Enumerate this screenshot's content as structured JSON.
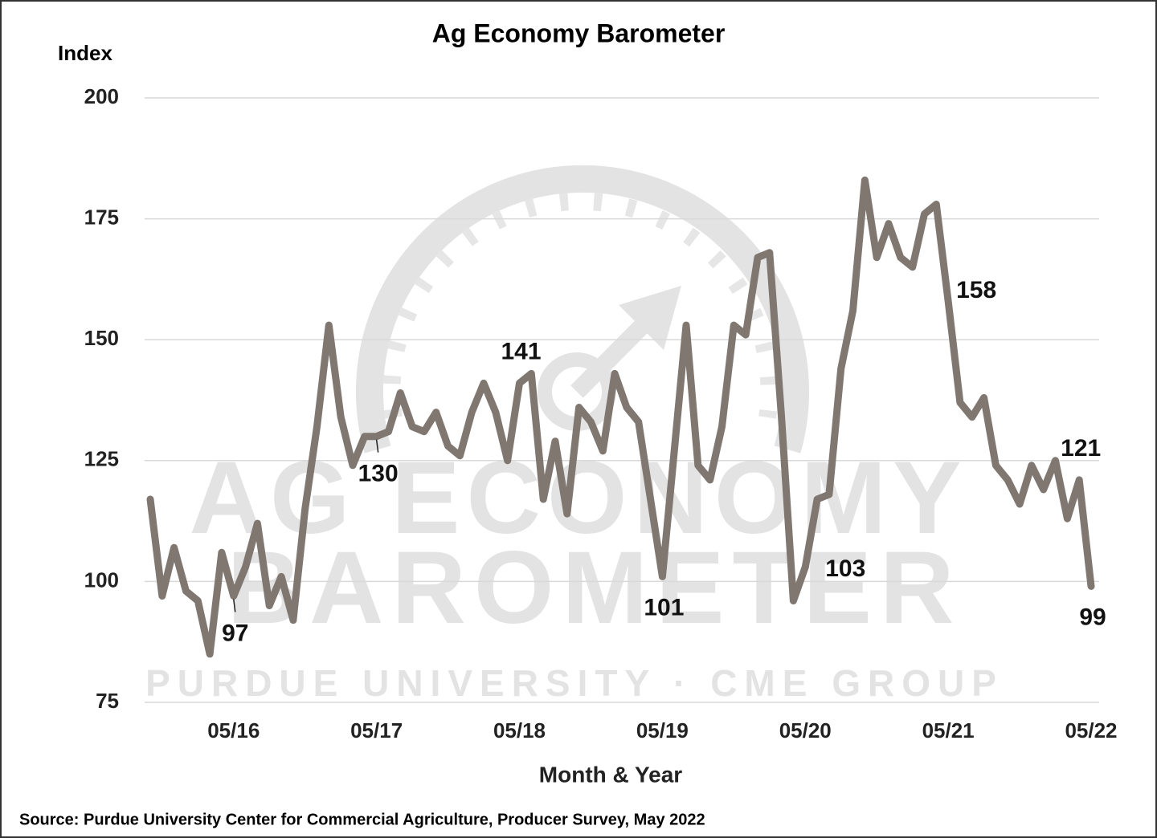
{
  "chart_data": {
    "type": "line",
    "title": "Ag Economy Barometer",
    "y_label": "Index",
    "x_label": "Month & Year",
    "source": "Source: Purdue University Center for Commercial Agriculture, Producer Survey, May 2022",
    "categories": [
      null,
      null,
      null,
      null,
      null,
      null,
      null,
      "05/16",
      null,
      null,
      null,
      null,
      null,
      null,
      null,
      null,
      null,
      null,
      null,
      "05/17",
      null,
      null,
      null,
      null,
      null,
      null,
      null,
      null,
      null,
      null,
      null,
      "05/18",
      null,
      null,
      null,
      null,
      null,
      null,
      null,
      null,
      null,
      null,
      null,
      "05/19",
      null,
      null,
      null,
      null,
      null,
      null,
      null,
      null,
      null,
      null,
      null,
      "05/20",
      null,
      null,
      null,
      null,
      null,
      null,
      null,
      null,
      null,
      null,
      null,
      "05/21",
      null,
      null,
      null,
      null,
      null,
      null,
      null,
      null,
      null,
      null,
      null,
      "05/22"
    ],
    "values": [
      117,
      97,
      107,
      98,
      96,
      85,
      106,
      97,
      103,
      112,
      95,
      101,
      92,
      115,
      132,
      153,
      134,
      124,
      130,
      130,
      131,
      139,
      132,
      131,
      135,
      128,
      126,
      135,
      141,
      135,
      125,
      141,
      143,
      117,
      129,
      114,
      136,
      133,
      127,
      143,
      136,
      133,
      117,
      101,
      127,
      153,
      124,
      121,
      132,
      153,
      151,
      167,
      168,
      134,
      96,
      103,
      117,
      118,
      144,
      156,
      183,
      167,
      174,
      167,
      165,
      176,
      178,
      158,
      137,
      134,
      138,
      124,
      121,
      116,
      124,
      119,
      125,
      113,
      121,
      99
    ],
    "value_labels": [
      null,
      null,
      null,
      null,
      null,
      null,
      null,
      97,
      null,
      null,
      null,
      null,
      null,
      null,
      null,
      null,
      null,
      null,
      null,
      130,
      null,
      null,
      null,
      null,
      null,
      null,
      null,
      null,
      null,
      null,
      null,
      141,
      null,
      null,
      null,
      null,
      null,
      null,
      null,
      null,
      null,
      null,
      null,
      101,
      null,
      null,
      null,
      null,
      null,
      null,
      null,
      null,
      null,
      null,
      null,
      103,
      null,
      null,
      null,
      null,
      null,
      null,
      null,
      null,
      null,
      null,
      null,
      158,
      null,
      null,
      null,
      null,
      null,
      null,
      null,
      null,
      null,
      null,
      121,
      99
    ],
    "color": "#7f7770",
    "ylim": [
      75,
      200
    ],
    "yticks": [
      75,
      100,
      125,
      150,
      175,
      200
    ],
    "grid": true
  },
  "watermark": {
    "lines": [
      "AG ECONOMY",
      "BAROMETER",
      "PURDUE UNIVERSITY · CME GROUP"
    ]
  }
}
